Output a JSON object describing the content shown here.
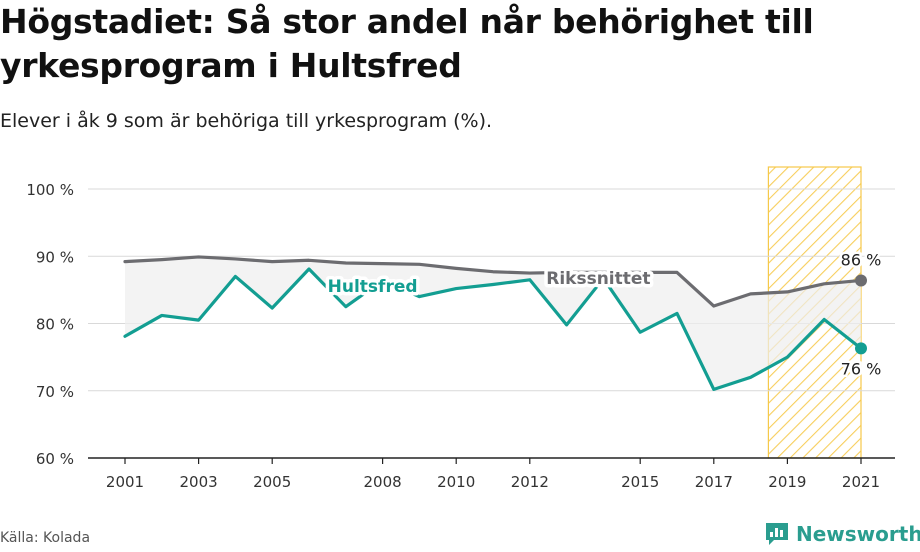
{
  "header": {
    "title": "Högstadiet: Så stor andel når behörighet till yrkesprogram i Hultsfred",
    "subtitle": "Elever i åk 9 som är behöriga till yrkesprogram (%)."
  },
  "footer": {
    "source": "Källa: Kolada",
    "brand": "Newsworthy"
  },
  "colors": {
    "hultsfred": "#139e92",
    "riksnittet": "#6c6c70",
    "highlight": "#f6c94a",
    "grid": "#d9d9d9",
    "fill": "#eeeeee"
  },
  "chart_data": {
    "type": "line",
    "x": [
      2001,
      2002,
      2003,
      2004,
      2005,
      2006,
      2007,
      2008,
      2009,
      2010,
      2011,
      2012,
      2013,
      2014,
      2015,
      2016,
      2017,
      2018,
      2019,
      2020,
      2021
    ],
    "series": [
      {
        "name": "Hultsfred",
        "values": [
          78.1,
          81.2,
          80.5,
          87.0,
          82.3,
          88.1,
          82.5,
          86.4,
          84.0,
          85.2,
          85.8,
          86.5,
          79.8,
          86.7,
          78.7,
          81.5,
          70.2,
          72.0,
          75.0,
          80.6,
          76.3
        ]
      },
      {
        "name": "Rikssnittet",
        "values": [
          89.2,
          89.5,
          89.9,
          89.6,
          89.2,
          89.4,
          89.0,
          88.9,
          88.8,
          88.2,
          87.7,
          87.5,
          87.6,
          87.6,
          87.6,
          87.6,
          82.6,
          84.4,
          84.7,
          85.9,
          86.4
        ]
      }
    ],
    "xticks": [
      "2001",
      "2003",
      "2005",
      "2008",
      "2010",
      "2012",
      "2015",
      "2017",
      "2019",
      "2021"
    ],
    "yticks": [
      "60 %",
      "70 %",
      "80 %",
      "90 %",
      "100 %"
    ],
    "ylim": [
      60,
      100
    ],
    "xlim": [
      2001,
      2021
    ],
    "highlight_range": [
      2019,
      2021
    ],
    "end_labels": {
      "Rikssnittet": "86 %",
      "Hultsfred": "76 %"
    },
    "grid": true,
    "xlabel": "",
    "ylabel": ""
  }
}
